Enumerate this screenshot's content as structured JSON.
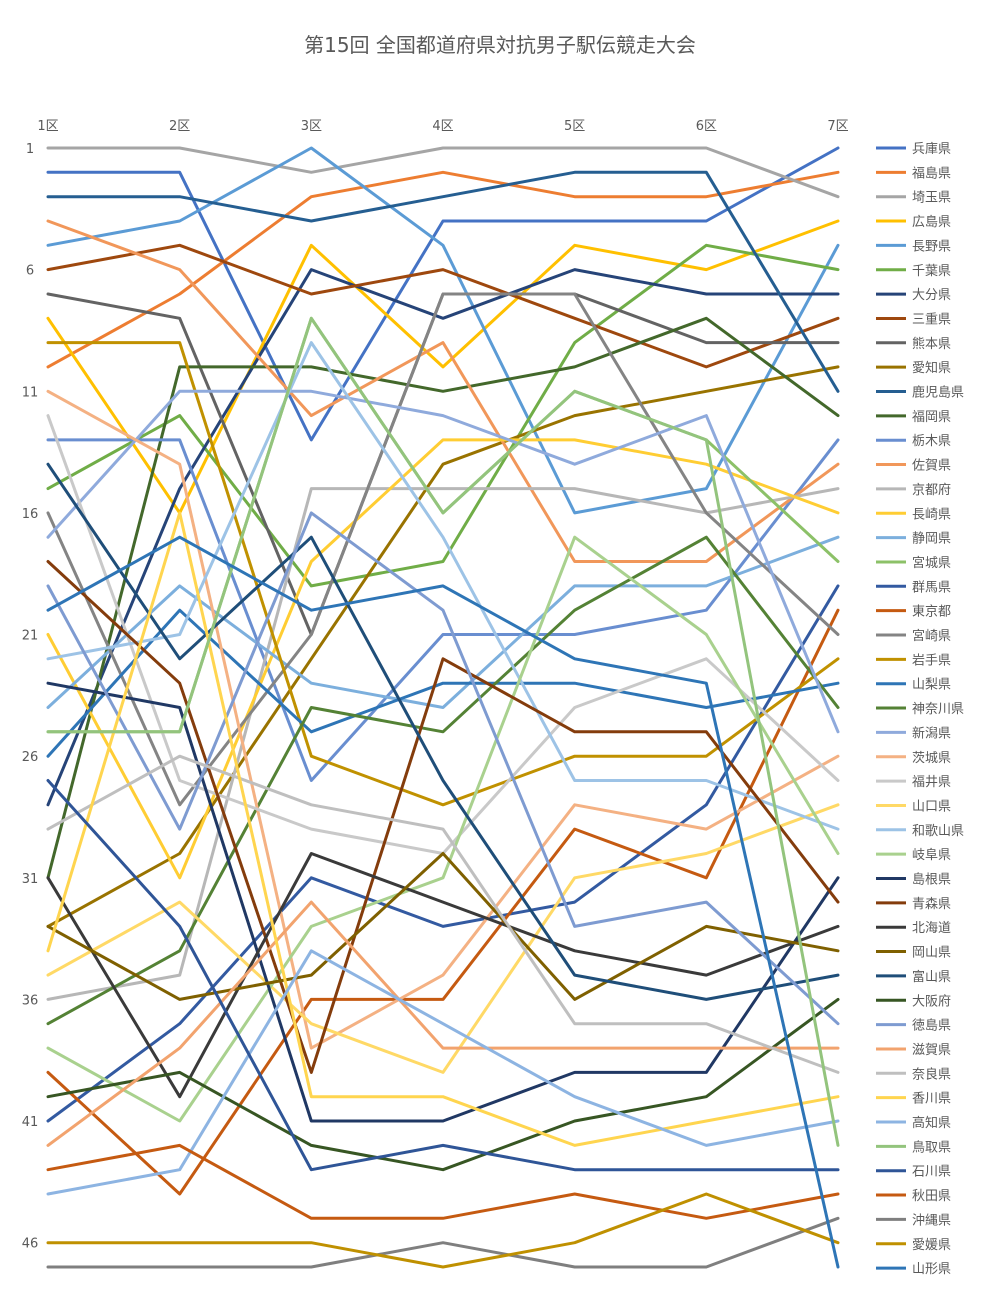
{
  "chart_data": {
    "type": "line",
    "title": "第15回 全国都道府県対抗男子駅伝競走大会",
    "categories": [
      "1区",
      "2区",
      "3区",
      "4区",
      "5区",
      "6区",
      "7区"
    ],
    "y_axis": {
      "reversed": true,
      "min": 1,
      "max": 47,
      "tick_labels": [
        "1",
        "6",
        "11",
        "16",
        "21",
        "26",
        "31",
        "36",
        "41",
        "46"
      ]
    },
    "grid": false,
    "legend_position": "right",
    "series": [
      {
        "name": "兵庫県",
        "color": "#4472c4",
        "values": [
          2,
          2,
          13,
          4,
          4,
          4,
          1
        ]
      },
      {
        "name": "福島県",
        "color": "#ed7d31",
        "values": [
          10,
          7,
          3,
          2,
          3,
          3,
          2
        ]
      },
      {
        "name": "埼玉県",
        "color": "#a5a5a5",
        "values": [
          1,
          1,
          2,
          1,
          1,
          1,
          3
        ]
      },
      {
        "name": "広島県",
        "color": "#ffc000",
        "values": [
          8,
          16,
          5,
          10,
          5,
          6,
          4
        ]
      },
      {
        "name": "長野県",
        "color": "#5b9bd5",
        "values": [
          5,
          4,
          1,
          5,
          16,
          15,
          5
        ]
      },
      {
        "name": "千葉県",
        "color": "#70ad47",
        "values": [
          15,
          12,
          19,
          18,
          9,
          5,
          6
        ]
      },
      {
        "name": "大分県",
        "color": "#264478",
        "values": [
          28,
          15,
          6,
          8,
          6,
          7,
          7
        ]
      },
      {
        "name": "三重県",
        "color": "#9e480e",
        "values": [
          6,
          5,
          7,
          6,
          8,
          10,
          8
        ]
      },
      {
        "name": "熊本県",
        "color": "#636363",
        "values": [
          7,
          8,
          21,
          7,
          7,
          9,
          9
        ]
      },
      {
        "name": "愛知県",
        "color": "#997300",
        "values": [
          33,
          30,
          22,
          14,
          12,
          11,
          10
        ]
      },
      {
        "name": "鹿児島県",
        "color": "#255e91",
        "values": [
          3,
          3,
          4,
          3,
          2,
          2,
          11
        ]
      },
      {
        "name": "福岡県",
        "color": "#43682b",
        "values": [
          31,
          10,
          10,
          11,
          10,
          8,
          12
        ]
      },
      {
        "name": "栃木県",
        "color": "#698ed0",
        "values": [
          13,
          13,
          27,
          21,
          21,
          20,
          13
        ]
      },
      {
        "name": "佐賀県",
        "color": "#f1975a",
        "values": [
          4,
          6,
          12,
          9,
          18,
          18,
          14
        ]
      },
      {
        "name": "京都府",
        "color": "#b7b7b7",
        "values": [
          36,
          35,
          15,
          15,
          15,
          16,
          15
        ]
      },
      {
        "name": "長崎県",
        "color": "#ffcd33",
        "values": [
          21,
          31,
          18,
          13,
          13,
          14,
          16
        ]
      },
      {
        "name": "静岡県",
        "color": "#7cafdd",
        "values": [
          24,
          19,
          23,
          24,
          19,
          19,
          17
        ]
      },
      {
        "name": "宮城県",
        "color": "#8cc168",
        "values": [
          25,
          25,
          8,
          16,
          11,
          13,
          18
        ]
      },
      {
        "name": "群馬県",
        "color": "#335aa1",
        "values": [
          41,
          37,
          31,
          33,
          32,
          28,
          19
        ]
      },
      {
        "name": "東京都",
        "color": "#c55a11",
        "values": [
          39,
          44,
          36,
          36,
          29,
          31,
          20
        ]
      },
      {
        "name": "宮崎県",
        "color": "#848484",
        "values": [
          16,
          28,
          21,
          7,
          7,
          16,
          21
        ]
      },
      {
        "name": "岩手県",
        "color": "#c09100",
        "values": [
          9,
          9,
          26,
          28,
          26,
          26,
          22
        ]
      },
      {
        "name": "山梨県",
        "color": "#2e75b6",
        "values": [
          26,
          20,
          25,
          23,
          23,
          24,
          23
        ]
      },
      {
        "name": "神奈川県",
        "color": "#548235",
        "values": [
          37,
          34,
          24,
          25,
          20,
          17,
          24
        ]
      },
      {
        "name": "新潟県",
        "color": "#8faadc",
        "values": [
          17,
          11,
          11,
          12,
          14,
          12,
          25
        ]
      },
      {
        "name": "茨城県",
        "color": "#f4b183",
        "values": [
          11,
          14,
          38,
          35,
          28,
          29,
          26
        ]
      },
      {
        "name": "福井県",
        "color": "#c9c9c9",
        "values": [
          12,
          27,
          29,
          30,
          24,
          22,
          27
        ]
      },
      {
        "name": "山口県",
        "color": "#ffd966",
        "values": [
          35,
          32,
          37,
          39,
          31,
          30,
          28
        ]
      },
      {
        "name": "和歌山県",
        "color": "#9dc3e6",
        "values": [
          22,
          21,
          9,
          17,
          27,
          27,
          29
        ]
      },
      {
        "name": "岐阜県",
        "color": "#a9d18e",
        "values": [
          38,
          41,
          33,
          31,
          17,
          21,
          30
        ]
      },
      {
        "name": "島根県",
        "color": "#203864",
        "values": [
          23,
          24,
          41,
          41,
          39,
          39,
          31
        ]
      },
      {
        "name": "青森県",
        "color": "#843c0c",
        "values": [
          18,
          23,
          39,
          22,
          25,
          25,
          32
        ]
      },
      {
        "name": "北海道",
        "color": "#3a3a3a",
        "values": [
          31,
          40,
          30,
          32,
          34,
          35,
          33
        ]
      },
      {
        "name": "岡山県",
        "color": "#7f6000",
        "values": [
          33,
          36,
          35,
          30,
          36,
          33,
          34
        ]
      },
      {
        "name": "富山県",
        "color": "#1f4e79",
        "values": [
          14,
          22,
          17,
          27,
          35,
          36,
          35
        ]
      },
      {
        "name": "大阪府",
        "color": "#375623",
        "values": [
          40,
          39,
          42,
          43,
          41,
          40,
          36
        ]
      },
      {
        "name": "徳島県",
        "color": "#7e9bd1",
        "values": [
          19,
          29,
          16,
          20,
          33,
          32,
          37
        ]
      },
      {
        "name": "滋賀県",
        "color": "#f2a36e",
        "values": [
          42,
          38,
          32,
          38,
          38,
          38,
          38
        ]
      },
      {
        "name": "奈良県",
        "color": "#bfbfbf",
        "values": [
          29,
          26,
          28,
          29,
          37,
          37,
          39
        ]
      },
      {
        "name": "香川県",
        "color": "#ffd54f",
        "values": [
          34,
          16,
          40,
          40,
          42,
          41,
          40
        ]
      },
      {
        "name": "高知県",
        "color": "#8db4e2",
        "values": [
          44,
          43,
          34,
          37,
          40,
          42,
          41
        ]
      },
      {
        "name": "鳥取県",
        "color": "#93c47d",
        "values": [
          25,
          25,
          8,
          16,
          11,
          13,
          42
        ]
      },
      {
        "name": "石川県",
        "color": "#2f5597",
        "values": [
          27,
          33,
          43,
          42,
          43,
          43,
          43
        ]
      },
      {
        "name": "秋田県",
        "color": "#c55a11",
        "values": [
          43,
          42,
          45,
          45,
          44,
          45,
          44
        ]
      },
      {
        "name": "沖縄県",
        "color": "#7f7f7f",
        "values": [
          47,
          47,
          47,
          46,
          47,
          47,
          45
        ]
      },
      {
        "name": "愛媛県",
        "color": "#bf9000",
        "values": [
          46,
          46,
          46,
          47,
          46,
          44,
          46
        ]
      },
      {
        "name": "山形県",
        "color": "#2e75b6",
        "values": [
          20,
          17,
          20,
          19,
          22,
          23,
          47
        ]
      }
    ]
  }
}
